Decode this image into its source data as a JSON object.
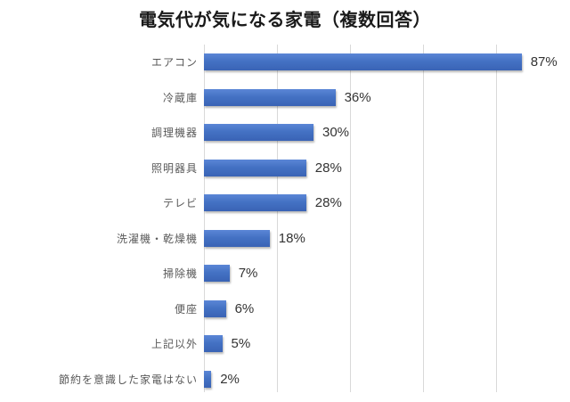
{
  "chart_data": {
    "type": "bar",
    "orientation": "horizontal",
    "title": "電気代が気になる家電（複数回答）",
    "xlabel": "",
    "ylabel": "",
    "xlim": [
      0,
      100
    ],
    "grid": true,
    "legend": null,
    "categories": [
      "エアコン",
      "冷蔵庫",
      "調理機器",
      "照明器具",
      "テレビ",
      "洗濯機・乾燥機",
      "掃除機",
      "便座",
      "上記以外",
      "節約を意識した家電はない"
    ],
    "values": [
      87,
      36,
      30,
      28,
      28,
      18,
      7,
      6,
      5,
      2
    ],
    "value_labels": [
      "87%",
      "36%",
      "30%",
      "28%",
      "28%",
      "18%",
      "7%",
      "6%",
      "5%",
      "2%"
    ],
    "colors": {
      "bar": "#4472C4",
      "grid": "#D9D9D9",
      "text": "#333333"
    }
  }
}
